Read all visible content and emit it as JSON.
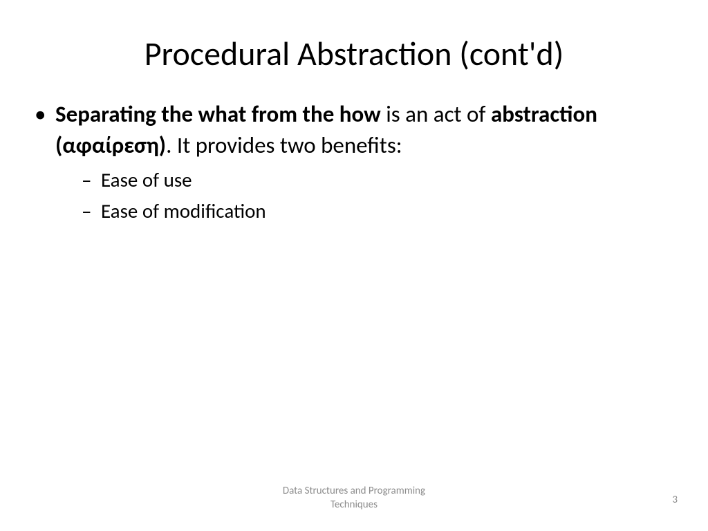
{
  "slide": {
    "title": "Procedural Abstraction (cont'd)",
    "background_color": "#ffffff",
    "title_fontsize": 48,
    "title_color": "#000000",
    "body_fontsize": 33,
    "sub_body_fontsize": 29,
    "body_color": "#000000",
    "bullet": {
      "lead_bold_1": "Separating the what from the how",
      "mid_plain_1": " is an act of ",
      "lead_bold_2": "abstraction (αφαίρεση)",
      "mid_plain_2": ". It provides two benefits:"
    },
    "sub_bullets": [
      "Ease of use",
      "Ease of modification"
    ],
    "footer": {
      "line1": "Data Structures and Programming",
      "line2": "Techniques",
      "color": "#8c8c8c",
      "fontsize": 15
    },
    "page_number": "3"
  }
}
